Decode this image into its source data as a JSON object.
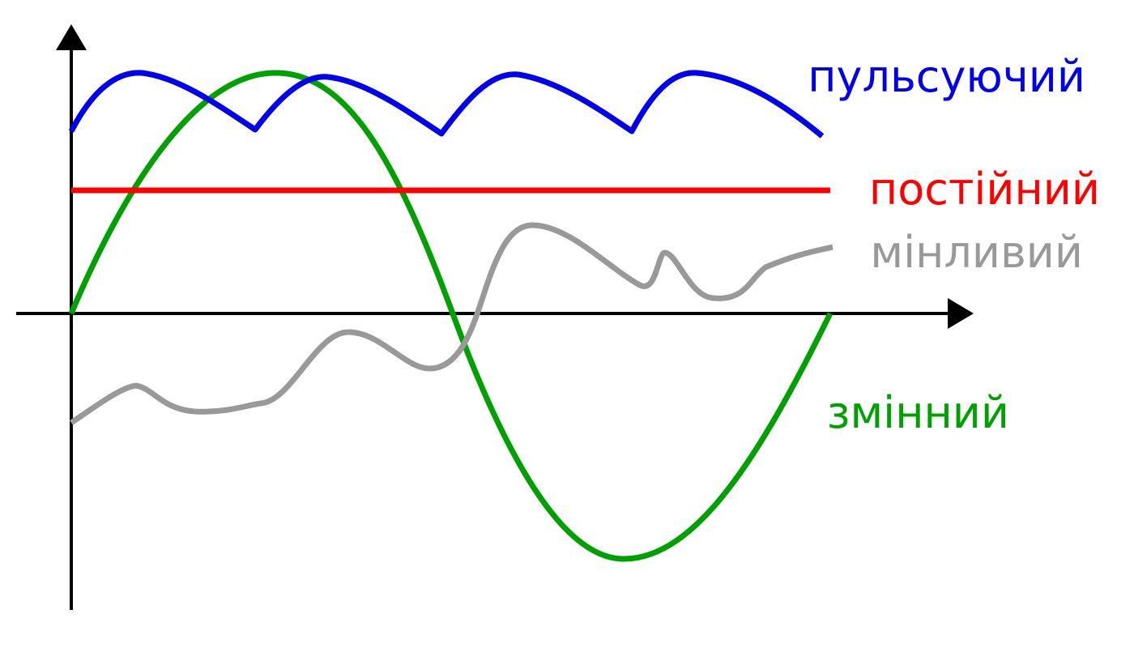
{
  "series": [
    {
      "key": "pulsating",
      "label": "пульсуючий",
      "color": "#0000ee"
    },
    {
      "key": "constant",
      "label": "постійний",
      "color": "#ff0000"
    },
    {
      "key": "variable",
      "label": "мінливий",
      "color": "#999999"
    },
    {
      "key": "alternating",
      "label": "змінний",
      "color": "#00a000"
    }
  ],
  "axis_color": "#000000"
}
